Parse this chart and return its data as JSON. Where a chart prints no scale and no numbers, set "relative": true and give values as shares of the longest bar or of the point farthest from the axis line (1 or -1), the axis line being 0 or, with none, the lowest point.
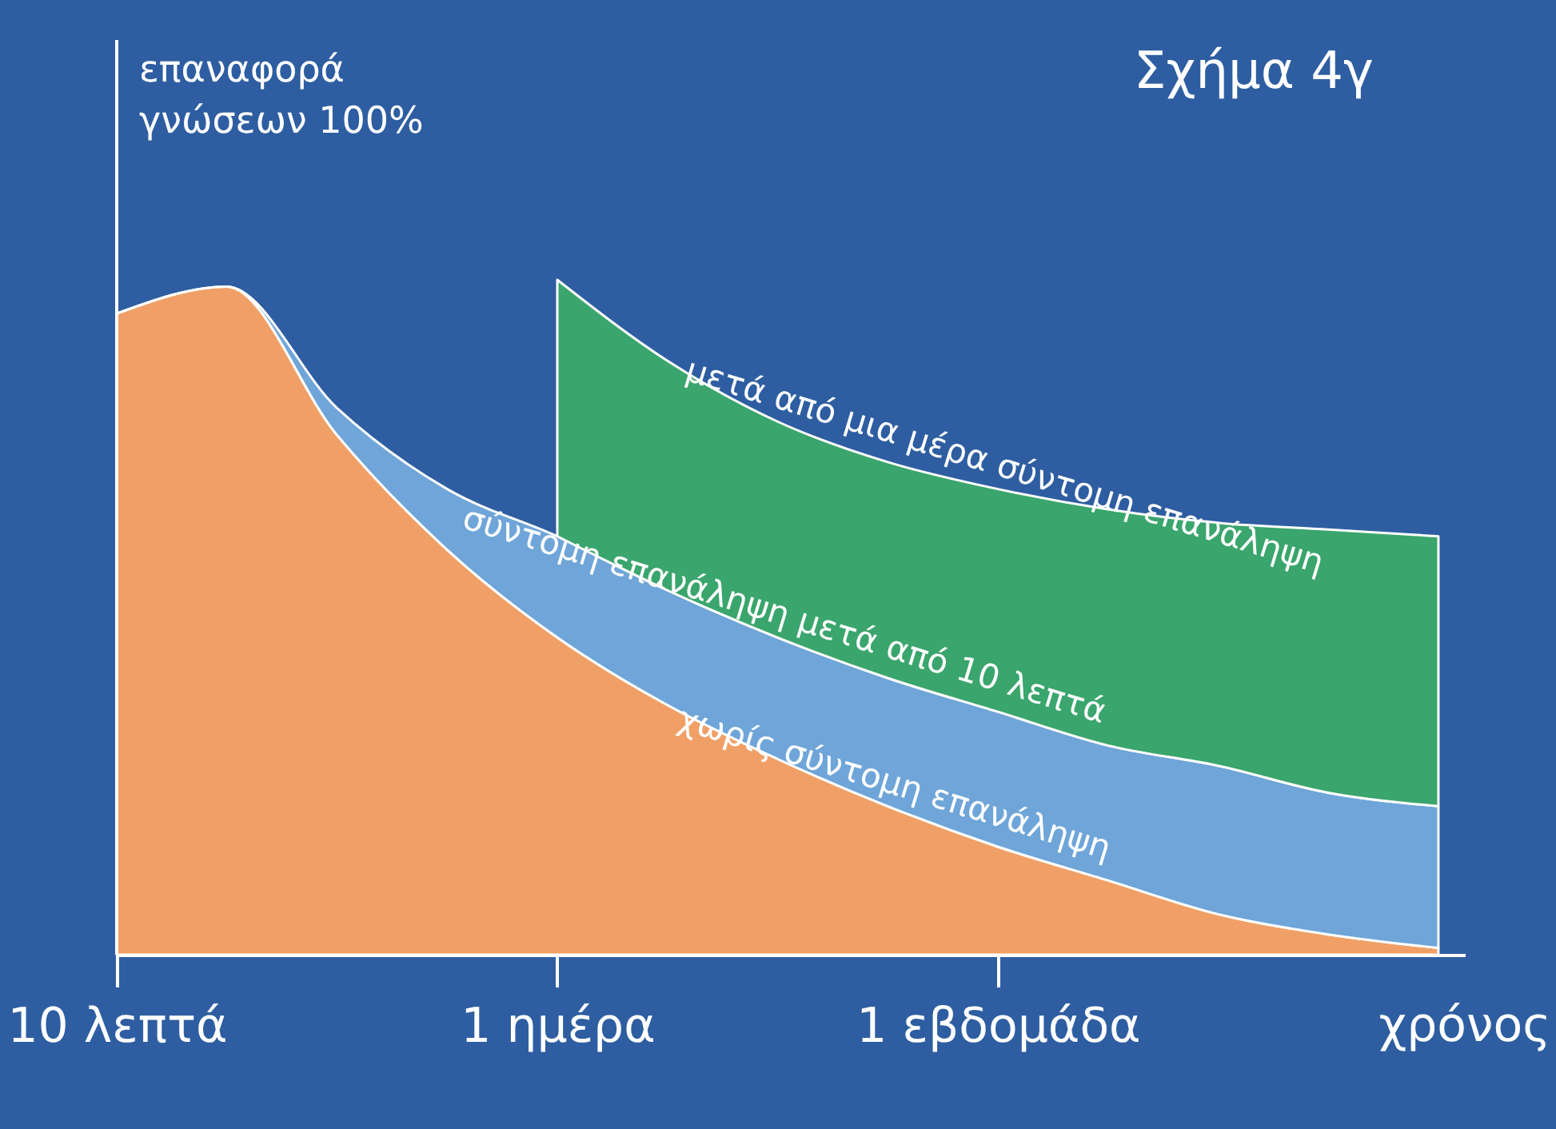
{
  "chart_data": {
    "type": "area",
    "title": "Σχήμα 4γ",
    "ylabel": "επαναφορά\nγνώσεων 100%",
    "xlabel": "χρόνος",
    "relative": true,
    "stacked": true,
    "categories": [
      "10 λεπτά",
      null,
      null,
      null,
      "1 ημέρα",
      null,
      null,
      null,
      "1 εβδομάδα",
      null,
      null,
      null,
      null
    ],
    "series": [
      {
        "name": "χωρίς σύντομη επανάληψη",
        "color": "#f0a067",
        "values": [
          0.95,
          0.99,
          0.77,
          0.6,
          0.47,
          0.37,
          0.29,
          0.22,
          0.16,
          0.11,
          0.06,
          0.03,
          0.01
        ]
      },
      {
        "name": "σύντομη επανάληψη μετά από 10 λεπτά",
        "color": "#6fa5d8",
        "values": [
          0,
          0,
          0.04,
          0.09,
          0.15,
          0.17,
          0.18,
          0.19,
          0.2,
          0.2,
          0.22,
          0.21,
          0.21
        ]
      },
      {
        "name": "μετά από μια μέρα σύντομη επανάληψη",
        "color": "#3aa56c",
        "values": [
          null,
          null,
          null,
          null,
          0.38,
          0.34,
          0.32,
          0.32,
          0.33,
          0.35,
          0.36,
          0.39,
          0.4
        ]
      }
    ]
  }
}
